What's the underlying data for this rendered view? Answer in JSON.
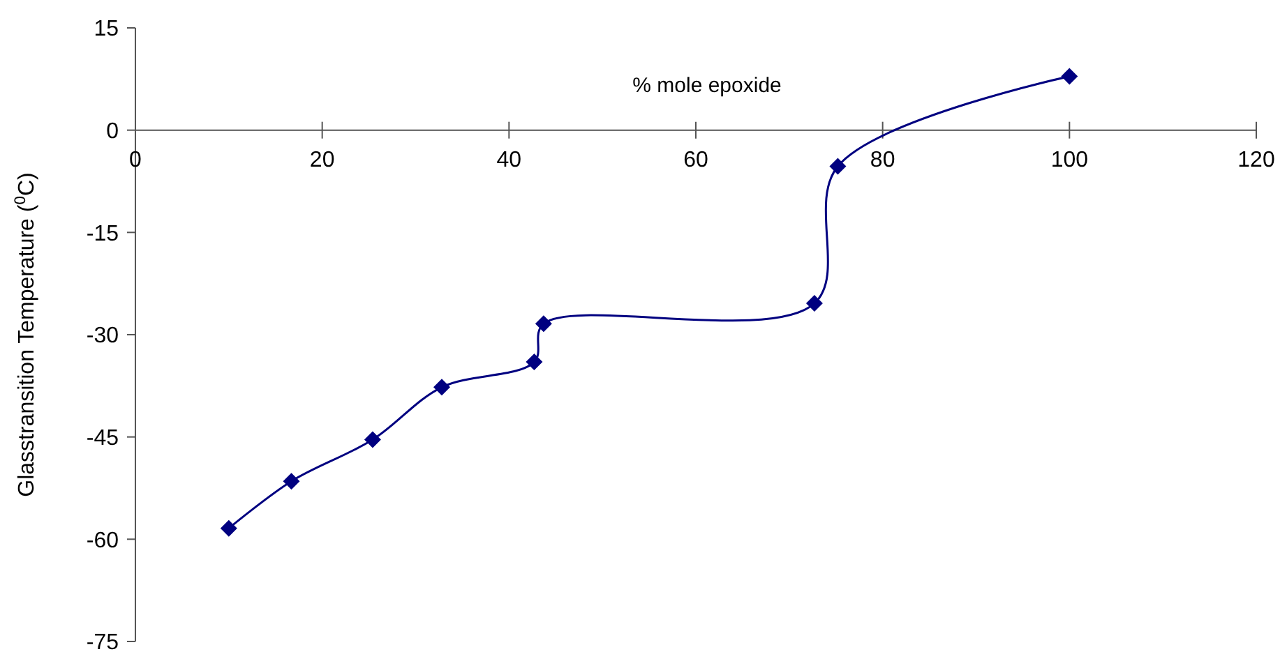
{
  "chart_data": {
    "type": "line",
    "xlabel": "% mole epoxide",
    "ylabel": "Glasstransition Temperature ($^{0}$C)",
    "series": [
      {
        "color": "#000080",
        "x": [
          10,
          16.7,
          25.4,
          32.8,
          42.7,
          43.7,
          72.7,
          75.2,
          100
        ],
        "values": [
          -58.4,
          -51.5,
          -45.4,
          -37.7,
          -34,
          -28.4,
          -25.4,
          -5.3,
          7.9
        ]
      }
    ],
    "xlim": [
      0,
      120
    ],
    "xticks": [
      0,
      20,
      40,
      60,
      80,
      100,
      120
    ],
    "ylim": [
      -75,
      15
    ],
    "yticks": [
      -75,
      -60,
      -45,
      -30,
      -15,
      0,
      15
    ],
    "marker": "diamond",
    "line_style": "solid"
  }
}
